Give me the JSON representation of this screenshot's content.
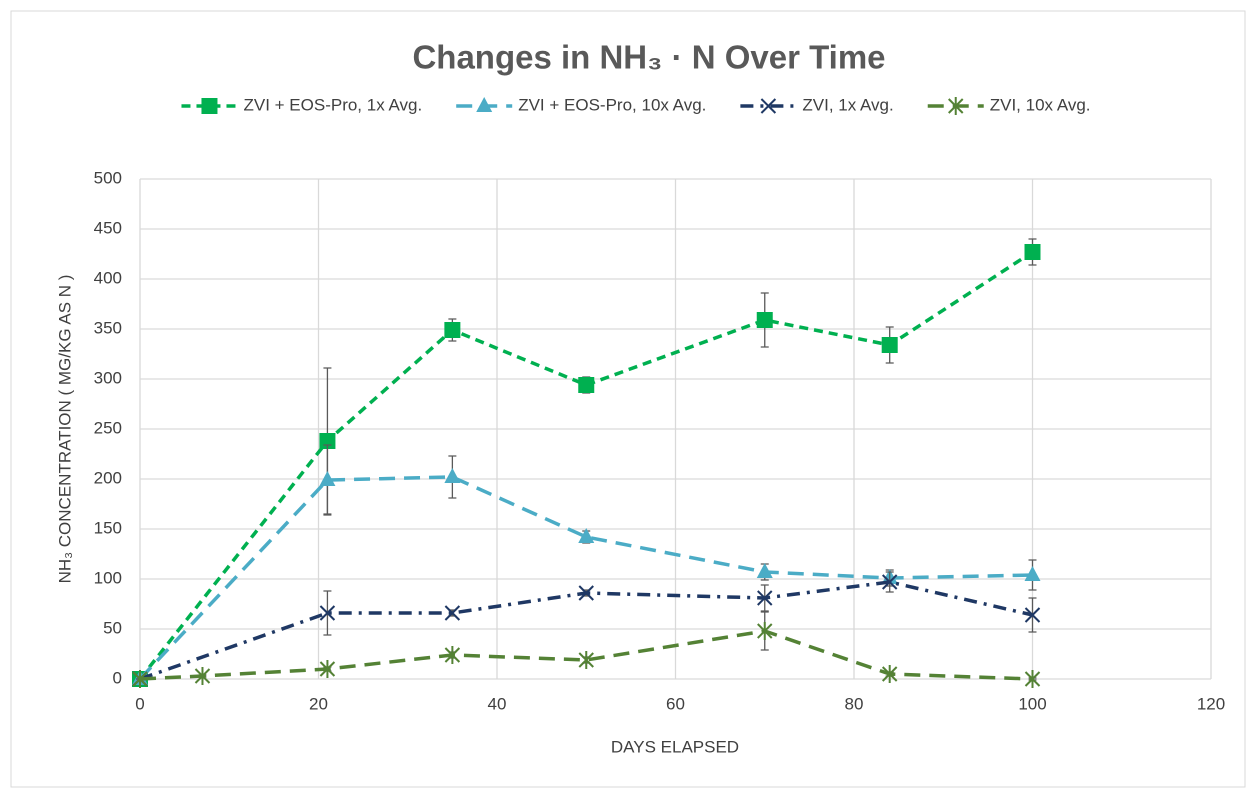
{
  "chart_data": {
    "type": "line",
    "title": "Changes in NH₃ · N Over Time",
    "xlabel": "DAYS ELAPSED",
    "ylabel": "NH₃ CONCENTRATION ( MG/KG AS N )",
    "xlim": [
      0,
      120
    ],
    "xticks": [
      0,
      20,
      40,
      60,
      80,
      100,
      120
    ],
    "ylim": [
      0,
      500
    ],
    "yticks": [
      0,
      50,
      100,
      150,
      200,
      250,
      300,
      350,
      400,
      450,
      500
    ],
    "grid": true,
    "legend": "top",
    "series": [
      {
        "name": "ZVI + EOS-Pro, 1x Avg.",
        "color": "#00b050",
        "marker": "square",
        "dash": "dash",
        "x": [
          0,
          21,
          35,
          50,
          70,
          84,
          100
        ],
        "values": [
          0,
          238,
          349,
          294,
          359,
          334,
          427
        ],
        "errors": [
          0,
          73,
          11,
          8,
          27,
          18,
          13
        ]
      },
      {
        "name": "ZVI + EOS-Pro, 10x Avg.",
        "color": "#4bacc6",
        "marker": "triangle",
        "dash": "long-dash",
        "x": [
          0,
          21,
          35,
          50,
          70,
          84,
          100
        ],
        "values": [
          0,
          199,
          202,
          142,
          107,
          101,
          104
        ],
        "errors": [
          0,
          35,
          21,
          6,
          8,
          8,
          15
        ]
      },
      {
        "name": "ZVI, 1x Avg.",
        "color": "#1f3864",
        "marker": "x",
        "dash": "dash-dot",
        "x": [
          0,
          21,
          35,
          50,
          70,
          84,
          100
        ],
        "values": [
          0,
          66,
          66,
          86,
          81,
          97,
          64
        ],
        "errors": [
          0,
          22,
          3,
          3,
          13,
          10,
          17
        ]
      },
      {
        "name": "ZVI, 10x Avg.",
        "color": "#548235",
        "marker": "star",
        "dash": "long-dash",
        "x": [
          0,
          7,
          21,
          35,
          50,
          70,
          84,
          100
        ],
        "values": [
          0,
          3,
          10,
          24,
          19,
          48,
          5,
          0
        ],
        "errors": [
          0,
          1,
          2,
          3,
          3,
          19,
          2,
          1
        ]
      }
    ]
  }
}
